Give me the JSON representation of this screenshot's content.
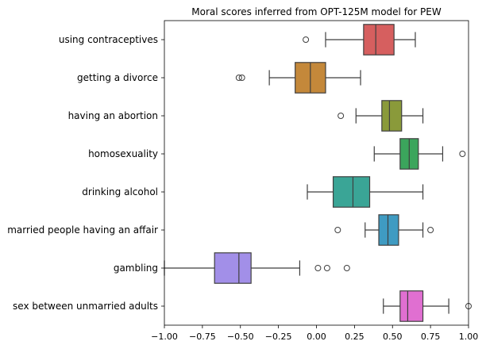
{
  "chart_data": {
    "type": "boxplot",
    "orientation": "horizontal",
    "title": "Moral scores inferred from OPT-125M model for PEW",
    "xlabel": "",
    "ylabel": "",
    "xlim": [
      -1.0,
      1.0
    ],
    "xticks": [
      -1.0,
      -0.75,
      -0.5,
      -0.25,
      0.0,
      0.25,
      0.5,
      0.75,
      1.0
    ],
    "xtick_labels": [
      "−1.00",
      "−0.75",
      "−0.50",
      "−0.25",
      "0.00",
      "0.25",
      "0.50",
      "0.75",
      "1.00"
    ],
    "grid": false,
    "categories": [
      "using contraceptives",
      "getting a divorce",
      "having an abortion",
      "homosexuality",
      "drinking alcohol",
      "married people having an affair",
      "gambling",
      "sex between unmarried adults"
    ],
    "boxes": [
      {
        "label": "using contraceptives",
        "whisker_low": 0.06,
        "q1": 0.31,
        "median": 0.39,
        "q3": 0.51,
        "whisker_high": 0.65,
        "fliers": [
          -0.07
        ],
        "color": "#d65f5f"
      },
      {
        "label": "getting a divorce",
        "whisker_low": -0.31,
        "q1": -0.14,
        "median": -0.04,
        "q3": 0.06,
        "whisker_high": 0.29,
        "fliers": [
          -0.51,
          -0.49
        ],
        "color": "#c4883a"
      },
      {
        "label": "having an abortion",
        "whisker_low": 0.26,
        "q1": 0.43,
        "median": 0.48,
        "q3": 0.56,
        "whisker_high": 0.7,
        "fliers": [
          0.16
        ],
        "color": "#8a9a3a"
      },
      {
        "label": "homosexuality",
        "whisker_low": 0.38,
        "q1": 0.55,
        "median": 0.61,
        "q3": 0.67,
        "whisker_high": 0.83,
        "fliers": [
          0.96
        ],
        "color": "#3ba55c"
      },
      {
        "label": "drinking alcohol",
        "whisker_low": -0.06,
        "q1": 0.11,
        "median": 0.24,
        "q3": 0.35,
        "whisker_high": 0.7,
        "fliers": [],
        "color": "#3aa596"
      },
      {
        "label": "married people having an affair",
        "whisker_low": 0.32,
        "q1": 0.41,
        "median": 0.47,
        "q3": 0.54,
        "whisker_high": 0.7,
        "fliers": [
          0.14,
          0.75
        ],
        "color": "#3f9bc2"
      },
      {
        "label": "gambling",
        "whisker_low": -1.0,
        "q1": -0.67,
        "median": -0.51,
        "q3": -0.43,
        "whisker_high": -0.11,
        "fliers": [
          0.01,
          0.07,
          0.2
        ],
        "color": "#a28fe8"
      },
      {
        "label": "sex between unmarried adults",
        "whisker_low": 0.44,
        "q1": 0.55,
        "median": 0.6,
        "q3": 0.7,
        "whisker_high": 0.87,
        "fliers": [
          1.0
        ],
        "color": "#e06fd1"
      }
    ]
  }
}
